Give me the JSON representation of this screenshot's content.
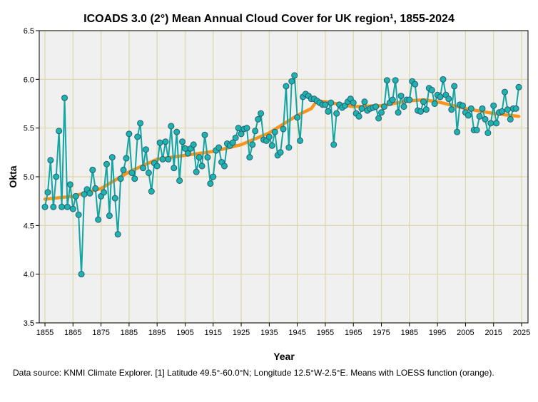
{
  "chart_data": {
    "type": "line",
    "title": "ICOADS 3.0 (2°) Mean Annual Cloud Cover for UK region¹, 1855-2024",
    "xlabel": "Year",
    "ylabel": "Okta",
    "xlim": [
      1853,
      2028
    ],
    "ylim": [
      3.5,
      6.5
    ],
    "grid": true,
    "x_ticks": [
      "1855",
      "1865",
      "1875",
      "1885",
      "1895",
      "1905",
      "1915",
      "1925",
      "1935",
      "1945",
      "1955",
      "1965",
      "1975",
      "1985",
      "1995",
      "2005",
      "2015",
      "2025"
    ],
    "y_ticks": [
      "3.5",
      "4.0",
      "4.5",
      "5.0",
      "5.5",
      "6.0",
      "6.5"
    ],
    "series": [
      {
        "name": "Mean annual cloud cover",
        "color": "#12a5a2",
        "start_year": 1855,
        "values": [
          4.69,
          4.84,
          5.17,
          4.69,
          5.0,
          5.47,
          4.69,
          5.81,
          4.69,
          4.92,
          4.67,
          4.8,
          4.61,
          4.0,
          4.82,
          4.87,
          4.83,
          5.07,
          4.88,
          4.56,
          4.8,
          4.84,
          5.13,
          4.6,
          5.2,
          4.78,
          4.41,
          4.98,
          5.07,
          5.19,
          5.44,
          5.04,
          4.98,
          5.41,
          5.55,
          5.09,
          5.28,
          5.04,
          4.85,
          5.14,
          5.11,
          5.35,
          5.18,
          5.36,
          5.18,
          5.52,
          5.09,
          5.46,
          4.96,
          5.36,
          5.29,
          5.24,
          5.29,
          5.33,
          5.05,
          5.2,
          5.11,
          5.43,
          5.2,
          4.93,
          5.0,
          5.27,
          5.3,
          5.15,
          5.11,
          5.34,
          5.32,
          5.35,
          5.4,
          5.5,
          5.44,
          5.49,
          5.5,
          5.2,
          5.33,
          5.47,
          5.59,
          5.65,
          5.38,
          5.37,
          5.41,
          5.32,
          5.46,
          5.22,
          5.25,
          5.49,
          5.93,
          5.3,
          5.98,
          6.04,
          5.61,
          5.37,
          5.82,
          5.85,
          5.83,
          5.8,
          5.8,
          5.78,
          5.76,
          5.74,
          5.74,
          5.67,
          5.76,
          5.33,
          5.65,
          5.74,
          5.71,
          5.73,
          5.77,
          5.8,
          5.76,
          5.65,
          5.62,
          5.7,
          5.77,
          5.68,
          5.7,
          5.71,
          5.72,
          5.6,
          5.66,
          5.72,
          5.99,
          5.76,
          5.79,
          5.99,
          5.66,
          5.83,
          5.72,
          5.79,
          5.79,
          5.98,
          5.95,
          5.68,
          5.67,
          5.77,
          5.69,
          5.91,
          5.89,
          5.75,
          5.84,
          5.82,
          6.0,
          5.84,
          5.8,
          5.69,
          5.93,
          5.46,
          5.74,
          5.73,
          5.66,
          5.63,
          5.7,
          5.48,
          5.48,
          5.62,
          5.7,
          5.59,
          5.45,
          5.55,
          5.73,
          5.55,
          5.66,
          5.67,
          5.87,
          5.69,
          5.59,
          5.7,
          5.7,
          5.92
        ]
      },
      {
        "name": "LOESS",
        "color": "#f7941d",
        "x": [
          1855,
          1865,
          1875,
          1885,
          1895,
          1905,
          1915,
          1925,
          1935,
          1945,
          1950,
          1952,
          1955,
          1965,
          1975,
          1985,
          1990,
          1995,
          2005,
          2015,
          2024
        ],
        "values": [
          4.77,
          4.8,
          4.88,
          5.05,
          5.18,
          5.22,
          5.26,
          5.33,
          5.45,
          5.63,
          5.7,
          5.78,
          5.77,
          5.72,
          5.73,
          5.78,
          5.79,
          5.77,
          5.7,
          5.65,
          5.62
        ]
      }
    ]
  },
  "footnote": "Data source: KNMI Climate Explorer. [1] Latitude 49.5°-60.0°N; Longitude 12.5°W-2.5°E. Means with LOESS function (orange)."
}
